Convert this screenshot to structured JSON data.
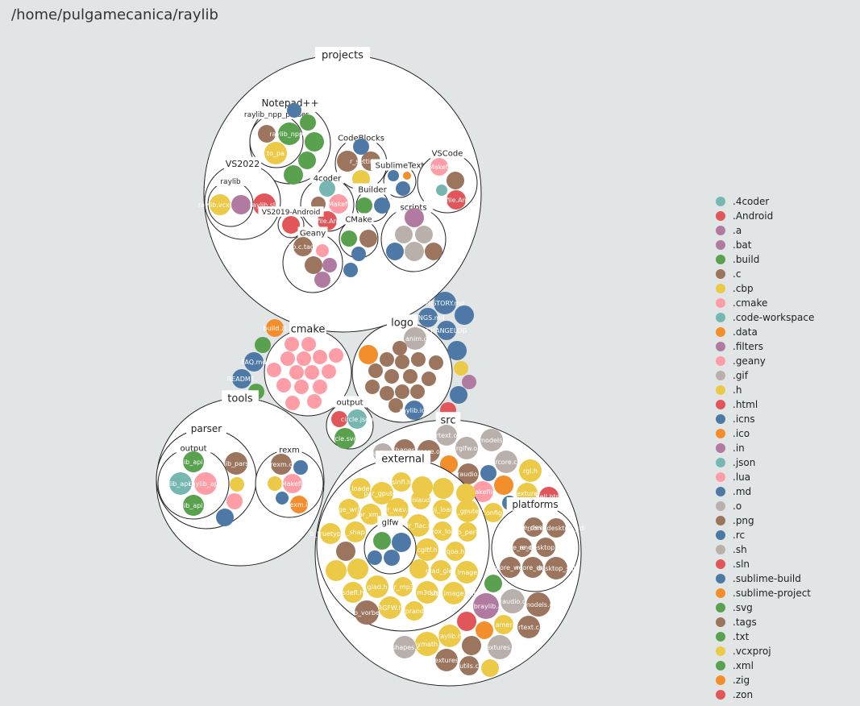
{
  "title": "/home/pulgamecanica/raylib",
  "colors": {
    ".4coder": "#76b7b2",
    ".Android": "#e15759",
    ".a": "#b07aa1",
    ".bat": "#b07aa1",
    ".build": "#59a14f",
    ".c": "#9c755f",
    ".cbp": "#edc948",
    ".cmake": "#ff9da7",
    ".code-workspace": "#76b7b2",
    ".data": "#f28e2c",
    ".filters": "#b07aa1",
    ".geany": "#ff9da7",
    ".gif": "#bab0ab",
    ".h": "#edc948",
    ".html": "#e15759",
    ".icns": "#4e79a7",
    ".ico": "#f28e2c",
    ".in": "#b07aa1",
    ".json": "#76b7b2",
    ".lua": "#ff9da7",
    ".md": "#4e79a7",
    ".o": "#bab0ab",
    ".png": "#9c755f",
    ".rc": "#4e79a7",
    ".sh": "#bab0ab",
    ".sln": "#e15759",
    ".sublime-build": "#4e79a7",
    ".sublime-project": "#f28e2c",
    ".svg": "#59a14f",
    ".tags": "#9c755f",
    ".txt": "#59a14f",
    ".vcxproj": "#edc948",
    ".xml": "#59a14f",
    ".zig": "#f28e2c",
    ".zon": "#e15759"
  },
  "legend": [
    ".4coder",
    ".Android",
    ".a",
    ".bat",
    ".build",
    ".c",
    ".cbp",
    ".cmake",
    ".code-workspace",
    ".data",
    ".filters",
    ".geany",
    ".gif",
    ".h",
    ".html",
    ".icns",
    ".ico",
    ".in",
    ".json",
    ".lua",
    ".md",
    ".o",
    ".png",
    ".rc",
    ".sh",
    ".sln",
    ".sublime-build",
    ".sublime-project",
    ".svg",
    ".tags",
    ".txt",
    ".vcxproj",
    ".xml",
    ".zig",
    ".zon"
  ],
  "folders": {
    "projects": "projects",
    "notepad": "Notepad++",
    "raylib_npp": "raylib_npp_parser",
    "codeblocks": "CodeBlocks",
    "vscode": "VSCode",
    "sublimetext": "SublimeText",
    "vs2022": "VS2022",
    "vs2022_raylib": "raylib",
    "fourcoder": "4coder",
    "builder": "Builder",
    "vs2019": "VS2019-Android",
    "scripts": "scripts",
    "geany": "Geany",
    "cmake_proj": "CMake",
    "cmake": "cmake",
    "logo": "logo",
    "tools": "tools",
    "parser": "parser",
    "parser_output": "output",
    "rexm": "rexm",
    "src": "src",
    "external": "external",
    "glfw": "glfw",
    "platforms": "platforms",
    "output_top": "output"
  },
  "files": {
    "raylib_npp": "raylib_npp.p",
    "to_parse": "to_pa",
    "cb_settings": "r_settings.pn",
    "makefile": "Makefi",
    "makefile_android": "file.An",
    "raylib_vcxproj": "raylib.vcxproj",
    "raylib_sln": "raylib.sln",
    "raylib_c_tags": "lib.c.tags",
    "build_zig": "build.zi",
    "faq_md": "FAQ.md",
    "readme_md": "README.",
    "history_md": "HISTORY.md",
    "headings_md": "DINGS.md",
    "changelog": "CHANGELOG",
    "anim_gif": "o_anim.gif",
    "raylib_ico": "raylib.ico",
    "circle_json": "circle.json",
    "circle_svg": "rcle.svg",
    "lib_api_top": "lib_api.",
    "lib_api_l": "lib_api.",
    "lib_api_r": "raylib_api.",
    "lib_api_b": "lib_api.",
    "lib_parse": "lib_pars",
    "rexm_c": "rexm.c",
    "rexm_makefile": "Makefil",
    "rexm_ico": "rexm.ic",
    "rtext_o": "rtext.o",
    "models_o": "models.",
    "shapes_o": "shapes.",
    "rcore_o": "rcore.o",
    "rglfw_o": "rglfw.o",
    "utils_o": "utils.o",
    "rcore_c": "rcore.c",
    "raudio_top": "raudio.",
    "rgl_h": "rgl.h",
    "makefile_src": "Makefile",
    "textures_o": "exture",
    "shell_html": "hell.htm",
    "config_h": "config.",
    "jar_xm_h": "jar_xm.h",
    "dr_wav_h": "dr_wav.h",
    "loader_h": "_loader",
    "par_gputex": "par_gputex",
    "sinfl_h": "sinfl.h",
    "dr_flac_h": "dr_flac.h",
    "miniaudio_h": "miniaudio.",
    "cgltf_h": "cgltf.h",
    "stb_image_write": "image_write.h",
    "truetype_h": "b_truetype.h",
    "shapes_h": "_shap",
    "obj_loader": "obj_loade",
    "dr_mp3_h": "dr_mp3.",
    "stb_image_h": "b_image.h",
    "rl_gputex": "rl_gputex",
    "vox_loader": "vox_loa",
    "qoa_h": "qoa.h",
    "qoi_h": "qoi.h",
    "stb_perlin": "stb_perlin",
    "msf_gif": "msf_gif.",
    "glad_gles": "glad_gles",
    "rprand": "rprand.",
    "glad_h": "glad.h",
    "m3d_h": "m3d.h",
    "stb_image_resize": "stb_image_res",
    "stb_vorbis": "o_vorbe",
    "rglfw_h": "RGFW.h",
    "sdefl": "sdefl.h",
    "par_shapes": "par_shapes",
    "rcore_desktop": "rcore_desktop",
    "rcore_sdl": "rcore_desktop_sdl",
    "rcore_android": "rcore_android",
    "rcore_web": "rcore_web",
    "rcore_rgfw": "re_desktop_rgfw",
    "rcore_drm": "rcore_drm",
    "desktop_sdl": "desktop_sdl",
    "libraylib_a": "libraylib.a",
    "raudio_c": "raudio.c",
    "models_c": "models.c",
    "raymath_h": "raymath.h",
    "raylib_h": "raylib.h",
    "shapes_c": "rshapes.c",
    "rtext_c": "rtext.c",
    "textures_c": "textures.c",
    "utils_c": "utils.c",
    "camera_h": "rcamera.",
    "rtextures_o": "extures",
    "dr_m_h": "dr_mp3.h"
  }
}
